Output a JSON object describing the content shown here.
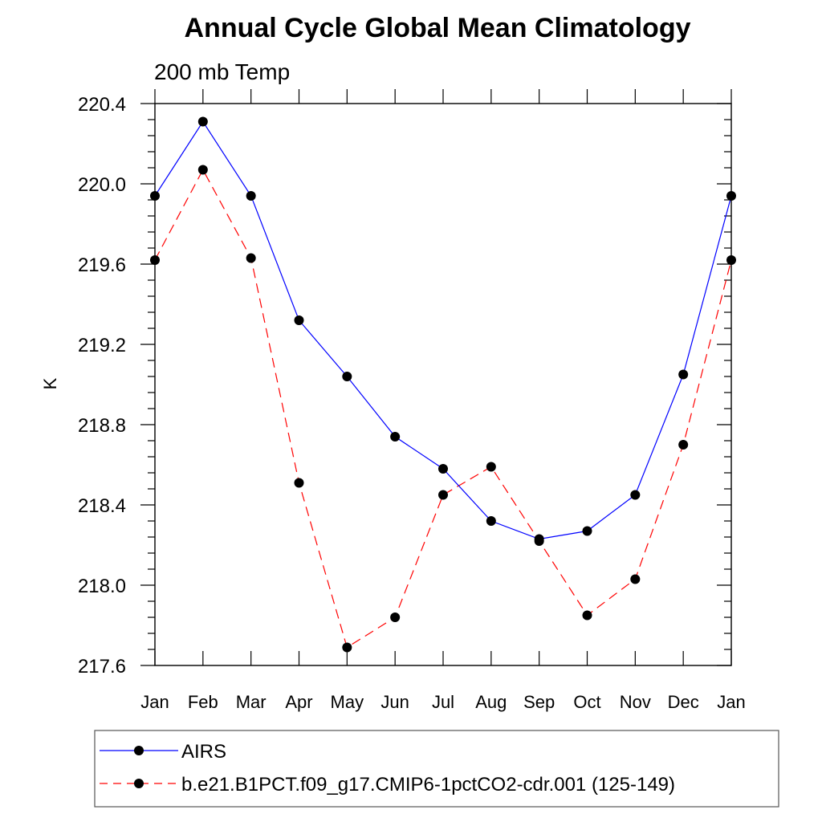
{
  "chart_data": {
    "type": "line",
    "title": "Annual Cycle Global Mean Climatology",
    "subtitle": "200 mb Temp",
    "xlabel": "",
    "ylabel": "K",
    "categories": [
      "Jan",
      "Feb",
      "Mar",
      "Apr",
      "May",
      "Jun",
      "Jul",
      "Aug",
      "Sep",
      "Oct",
      "Nov",
      "Dec",
      "Jan"
    ],
    "ylim": [
      217.6,
      220.4
    ],
    "yticks": [
      "220.4",
      "220.0",
      "219.6",
      "219.2",
      "218.8",
      "218.4",
      "218.0",
      "217.6"
    ],
    "series": [
      {
        "name": "AIRS",
        "color": "#0000ff",
        "dash": "solid",
        "values": [
          219.94,
          220.31,
          219.94,
          219.32,
          219.04,
          218.74,
          218.58,
          218.32,
          218.23,
          218.27,
          218.45,
          219.05,
          219.94
        ]
      },
      {
        "name": "b.e21.B1PCT.f09_g17.CMIP6-1pctCO2-cdr.001 (125-149)",
        "color": "#ff0000",
        "dash": "dashed",
        "values": [
          219.62,
          220.07,
          219.63,
          218.51,
          217.69,
          217.84,
          218.45,
          218.59,
          218.22,
          217.85,
          218.03,
          218.7,
          219.62
        ]
      }
    ],
    "grid": false,
    "legend_position": "bottom"
  }
}
